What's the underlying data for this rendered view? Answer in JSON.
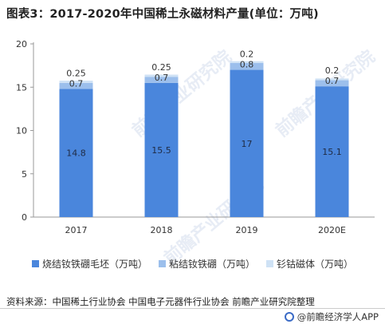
{
  "title": "图表3：2017-2020年中国稀土永磁材料产量(单位：万吨)",
  "chart_data": {
    "type": "bar",
    "stacked": true,
    "categories": [
      "2017",
      "2018",
      "2019",
      "2020E"
    ],
    "series": [
      {
        "name": "烧结钕铁硼毛坯（万吨）",
        "values": [
          14.8,
          15.5,
          17,
          15.1
        ],
        "color": "#4a86dc",
        "label_color": "#1f2b44"
      },
      {
        "name": "粘结钕铁硼（万吨）",
        "values": [
          0.7,
          0.7,
          0.8,
          0.7
        ],
        "color": "#9cbfec",
        "label_color": "#333333"
      },
      {
        "name": "钐钴磁体（万吨）",
        "values": [
          0.25,
          0.25,
          0.2,
          0.2
        ],
        "color": "#cfe2f5",
        "label_color": "#333333"
      }
    ],
    "yticks": [
      0,
      5,
      10,
      15,
      20
    ],
    "ylim": [
      0,
      20
    ],
    "legend_position": "bottom"
  },
  "source": "资料来源：中国稀土行业协会 中国电子元器件行业协会 前瞻产业研究院整理",
  "footer": "@前瞻经济学人APP",
  "watermark": "前瞻产业研究院"
}
